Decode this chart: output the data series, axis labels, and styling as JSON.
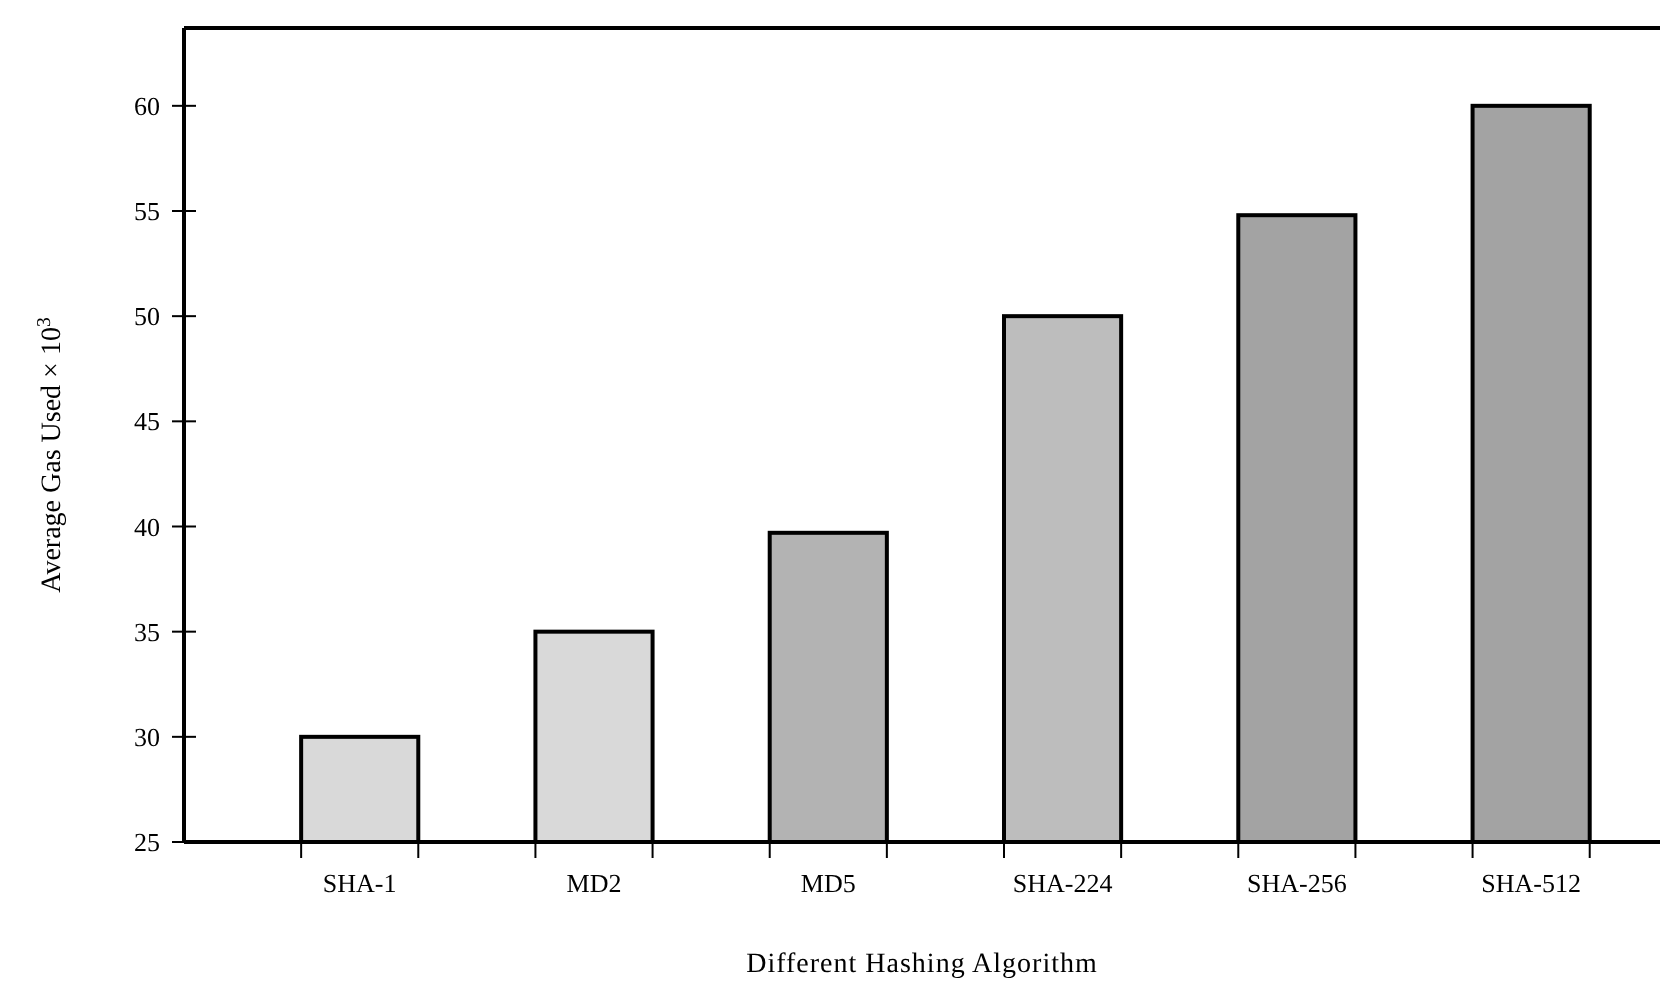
{
  "chart_data": {
    "type": "bar",
    "xlabel": "Different Hashing Algorithm",
    "ylabel": "Average Gas Used × 10$^{3}$",
    "categories": [
      "SHA-1",
      "MD2",
      "MD5",
      "SHA-224",
      "SHA-256",
      "SHA-512"
    ],
    "values": [
      30,
      35,
      39.7,
      50,
      54.8,
      60
    ],
    "colors": [
      "#d9d9d9",
      "#d9d9d9",
      "#b3b3b3",
      "#bdbdbd",
      "#a3a3a3",
      "#a3a3a3"
    ],
    "ylim": [
      25,
      63.7
    ],
    "yticks": [
      25,
      30,
      35,
      40,
      45,
      50,
      55,
      60
    ],
    "grid": false
  }
}
